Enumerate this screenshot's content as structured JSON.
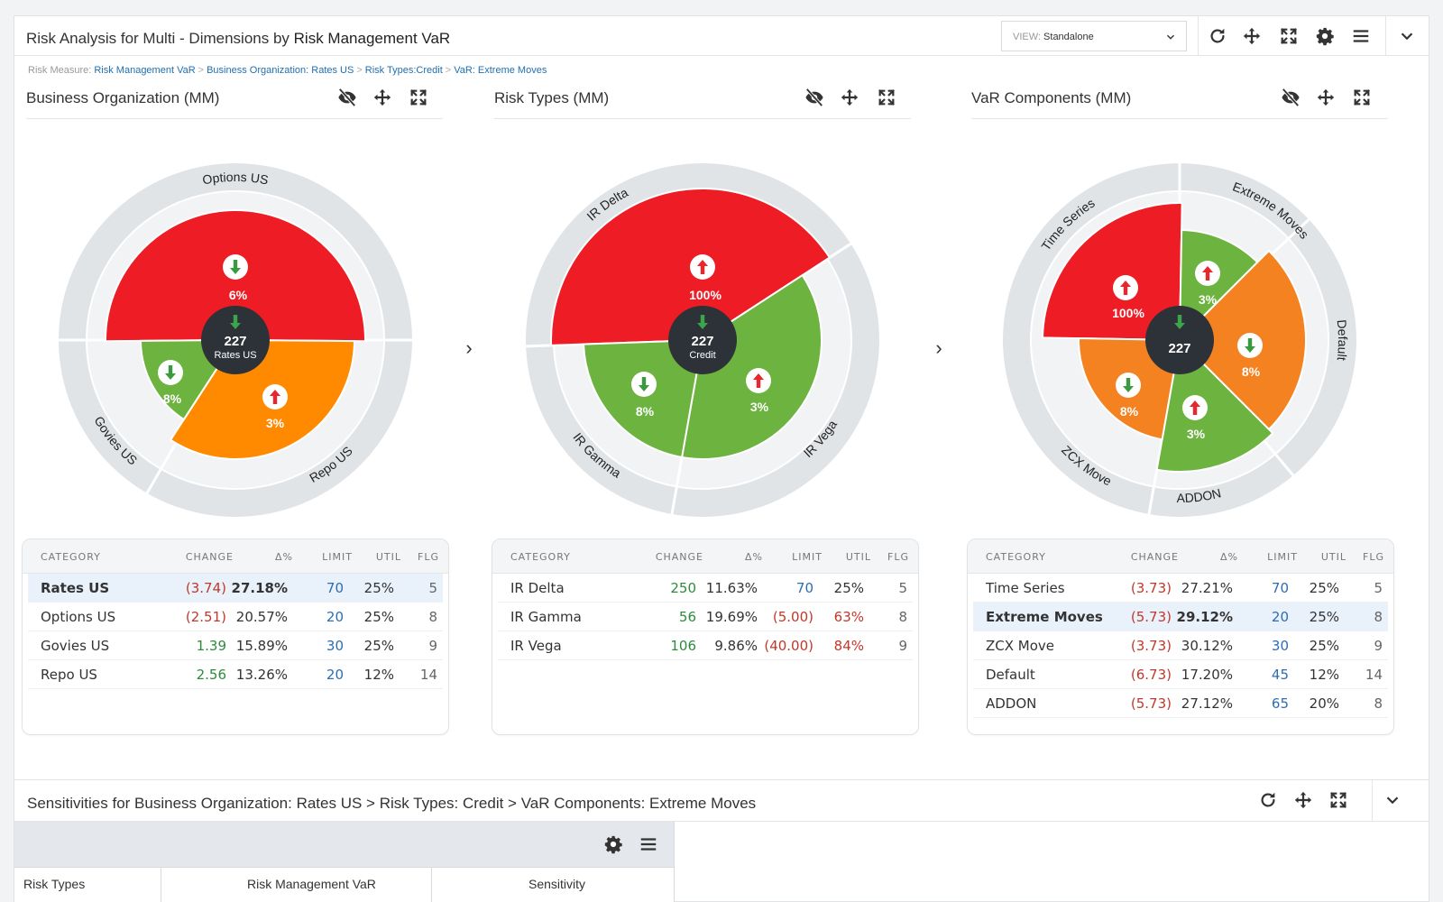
{
  "window": {
    "title_prefix": "Risk Analysis for Multi - Dimensions by",
    "title_strong": "Risk Management VaR",
    "view_label": "VIEW:",
    "view_value": "Standalone"
  },
  "breadcrumb": {
    "label": "Risk Measure:",
    "items": [
      "Risk Management VaR",
      "Business Organization: Rates US",
      "Risk Types:Credit",
      "VaR: Extreme Moves"
    ],
    "separator": ">"
  },
  "colors": {
    "red": "#ee1c25",
    "orange": "#f58220",
    "orange_bright": "#ff8a00",
    "green": "#6db33f",
    "center": "#2d3238",
    "link": "#1f6fb2"
  },
  "panels": [
    {
      "title": "Business Organization (MM)",
      "center_value": "227",
      "center_label": "Rates US",
      "center_arrow": "down",
      "ring_labels": [
        "Options US",
        "Govies US",
        "Repo US"
      ],
      "wedges": [
        {
          "label": "6%",
          "arrow": "down",
          "color": "red"
        },
        {
          "label": "3%",
          "arrow": "up",
          "color": "orange_bright"
        },
        {
          "label": "8%",
          "arrow": "down",
          "color": "green"
        }
      ],
      "table": {
        "headers": [
          "CATEGORY",
          "CHANGE",
          "Δ%",
          "LIMIT",
          "UTIL",
          "FLG"
        ],
        "rows": [
          {
            "category": "Rates US",
            "change": "(3.74)",
            "change_sign": "neg",
            "pct": "27.18%",
            "limit": "70",
            "limit_sign": "lim",
            "util": "25%",
            "util_sign": "",
            "flg": "5",
            "selected": true
          },
          {
            "category": "Options US",
            "change": "(2.51)",
            "change_sign": "neg",
            "pct": "20.57%",
            "limit": "20",
            "limit_sign": "lim",
            "util": "25%",
            "util_sign": "",
            "flg": "8",
            "selected": false
          },
          {
            "category": "Govies US",
            "change": "1.39",
            "change_sign": "pos",
            "pct": "15.89%",
            "limit": "30",
            "limit_sign": "lim",
            "util": "25%",
            "util_sign": "",
            "flg": "9",
            "selected": false
          },
          {
            "category": "Repo US",
            "change": "2.56",
            "change_sign": "pos",
            "pct": "13.26%",
            "limit": "20",
            "limit_sign": "lim",
            "util": "12%",
            "util_sign": "",
            "flg": "14",
            "selected": false
          }
        ]
      }
    },
    {
      "title": "Risk Types (MM)",
      "center_value": "227",
      "center_label": "Credit",
      "center_arrow": "down",
      "ring_labels": [
        "IR Delta",
        "IR Gamma",
        "IR Vega"
      ],
      "wedges": [
        {
          "label": "100%",
          "arrow": "up",
          "color": "red"
        },
        {
          "label": "3%",
          "arrow": "up",
          "color": "green"
        },
        {
          "label": "8%",
          "arrow": "down",
          "color": "green"
        }
      ],
      "table": {
        "headers": [
          "CATEGORY",
          "CHANGE",
          "Δ%",
          "LIMIT",
          "UTIL",
          "FLG"
        ],
        "rows": [
          {
            "category": "IR Delta",
            "change": "250",
            "change_sign": "pos",
            "pct": "11.63%",
            "limit": "70",
            "limit_sign": "lim",
            "util": "25%",
            "util_sign": "",
            "flg": "5",
            "selected": false
          },
          {
            "category": "IR Gamma",
            "change": "56",
            "change_sign": "pos",
            "pct": "19.69%",
            "limit": "(5.00)",
            "limit_sign": "neg",
            "util": "63%",
            "util_sign": "neg",
            "flg": "8",
            "selected": false
          },
          {
            "category": "IR Vega",
            "change": "106",
            "change_sign": "pos",
            "pct": "9.86%",
            "limit": "(40.00)",
            "limit_sign": "neg",
            "util": "84%",
            "util_sign": "neg",
            "flg": "9",
            "selected": false
          }
        ]
      }
    },
    {
      "title": "VaR Components (MM)",
      "center_value": "227",
      "center_label": "",
      "center_arrow": "down",
      "ring_labels": [
        "Time Series",
        "Extreme Moves",
        "Default",
        "ADDON",
        "ZCX Move"
      ],
      "wedges": [
        {
          "label": "100%",
          "arrow": "up",
          "color": "red"
        },
        {
          "label": "3%",
          "arrow": "up",
          "color": "green"
        },
        {
          "label": "8%",
          "arrow": "down",
          "color": "orange"
        },
        {
          "label": "3%",
          "arrow": "up",
          "color": "green"
        },
        {
          "label": "8%",
          "arrow": "down",
          "color": "orange"
        }
      ],
      "table": {
        "headers": [
          "CATEGORY",
          "CHANGE",
          "Δ%",
          "LIMIT",
          "UTIL",
          "FLG"
        ],
        "rows": [
          {
            "category": "Time Series",
            "change": "(3.73)",
            "change_sign": "neg",
            "pct": "27.21%",
            "limit": "70",
            "limit_sign": "lim",
            "util": "25%",
            "util_sign": "",
            "flg": "5",
            "selected": false
          },
          {
            "category": "Extreme Moves",
            "change": "(5.73)",
            "change_sign": "neg",
            "pct": "29.12%",
            "limit": "20",
            "limit_sign": "lim",
            "util": "25%",
            "util_sign": "",
            "flg": "8",
            "selected": true
          },
          {
            "category": "ZCX Move",
            "change": "(3.73)",
            "change_sign": "neg",
            "pct": "30.12%",
            "limit": "30",
            "limit_sign": "lim",
            "util": "25%",
            "util_sign": "",
            "flg": "9",
            "selected": false
          },
          {
            "category": "Default",
            "change": "(6.73)",
            "change_sign": "neg",
            "pct": "17.20%",
            "limit": "45",
            "limit_sign": "lim",
            "util": "12%",
            "util_sign": "",
            "flg": "14",
            "selected": false
          },
          {
            "category": "ADDON",
            "change": "(5.73)",
            "change_sign": "neg",
            "pct": "27.12%",
            "limit": "65",
            "limit_sign": "lim",
            "util": "20%",
            "util_sign": "",
            "flg": "8",
            "selected": false
          }
        ]
      }
    }
  ],
  "sensitivities": {
    "title": "Sensitivities for Business Organization: Rates US > Risk Types: Credit > VaR Components: Extreme Moves",
    "columns": [
      "Risk Types",
      "Risk Management VaR",
      "Sensitivity"
    ]
  }
}
